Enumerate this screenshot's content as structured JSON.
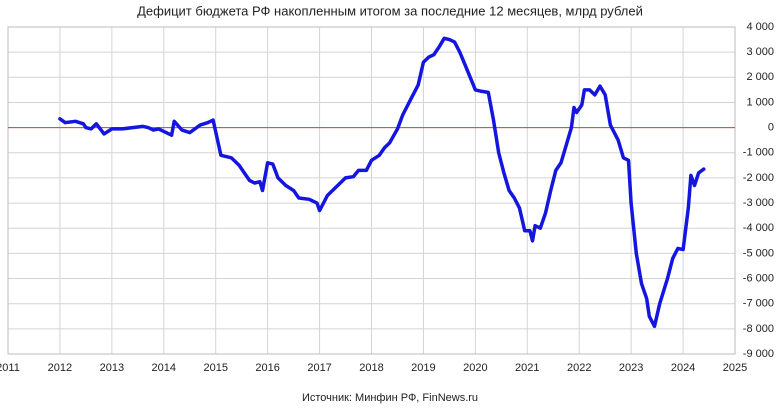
{
  "chart_data": {
    "type": "line",
    "title": "Дефицит бюджета РФ накопленным итогом за последние 12 месяцев, млрд рублей",
    "source": "Источник: Минфин РФ, FinNews.ru",
    "color": "#1515e0",
    "hline": 0,
    "hline_color": "#e03a3a",
    "grid": true,
    "xlim": [
      2011,
      2025
    ],
    "xticks": [
      2011,
      2012,
      2013,
      2014,
      2015,
      2016,
      2017,
      2018,
      2019,
      2020,
      2021,
      2022,
      2023,
      2024,
      2025
    ],
    "ylim": [
      -9000,
      4000
    ],
    "yticks": [
      {
        "value": 4000,
        "label": "4 000"
      },
      {
        "value": 3000,
        "label": "3 000"
      },
      {
        "value": 2000,
        "label": "2 000"
      },
      {
        "value": 1000,
        "label": "1 000"
      },
      0,
      {
        "value": -1000,
        "label": "-1 000"
      },
      {
        "value": -2000,
        "label": "-2 000"
      },
      {
        "value": -3000,
        "label": "-3 000"
      },
      {
        "value": -4000,
        "label": "-4 000"
      },
      {
        "value": -5000,
        "label": "-5 000"
      },
      {
        "value": -6000,
        "label": "-6 000"
      },
      {
        "value": -7000,
        "label": "-7 000"
      },
      {
        "value": -8000,
        "label": "-8 000"
      },
      {
        "value": -9000,
        "label": "-9 000"
      }
    ],
    "x": [
      2012.0,
      2012.1,
      2012.3,
      2012.45,
      2012.5,
      2012.6,
      2012.7,
      2012.85,
      2013.0,
      2013.2,
      2013.4,
      2013.6,
      2013.7,
      2013.8,
      2013.9,
      2014.0,
      2014.15,
      2014.2,
      2014.35,
      2014.5,
      2014.7,
      2014.85,
      2014.95,
      2015.1,
      2015.3,
      2015.45,
      2015.55,
      2015.65,
      2015.75,
      2015.85,
      2015.9,
      2016.0,
      2016.1,
      2016.2,
      2016.35,
      2016.5,
      2016.6,
      2016.8,
      2016.95,
      2017.0,
      2017.15,
      2017.3,
      2017.5,
      2017.65,
      2017.75,
      2017.9,
      2018.0,
      2018.15,
      2018.25,
      2018.35,
      2018.5,
      2018.6,
      2018.75,
      2018.9,
      2019.0,
      2019.1,
      2019.2,
      2019.3,
      2019.4,
      2019.5,
      2019.6,
      2019.7,
      2019.8,
      2019.9,
      2020.0,
      2020.1,
      2020.25,
      2020.35,
      2020.45,
      2020.55,
      2020.65,
      2020.75,
      2020.85,
      2020.95,
      2021.05,
      2021.1,
      2021.15,
      2021.25,
      2021.35,
      2021.45,
      2021.55,
      2021.65,
      2021.75,
      2021.85,
      2021.9,
      2021.95,
      2022.05,
      2022.1,
      2022.2,
      2022.3,
      2022.4,
      2022.5,
      2022.6,
      2022.75,
      2022.85,
      2022.95,
      2023.0,
      2023.1,
      2023.2,
      2023.3,
      2023.35,
      2023.45,
      2023.55,
      2023.7,
      2023.8,
      2023.9,
      2024.0,
      2024.1,
      2024.15,
      2024.22,
      2024.3,
      2024.4
    ],
    "values": [
      350,
      200,
      250,
      150,
      0,
      -50,
      150,
      -250,
      -50,
      -50,
      0,
      50,
      0,
      -100,
      -50,
      -150,
      -300,
      250,
      -100,
      -200,
      100,
      200,
      300,
      -1100,
      -1200,
      -1500,
      -1800,
      -2100,
      -2200,
      -2150,
      -2500,
      -1400,
      -1450,
      -2000,
      -2300,
      -2500,
      -2800,
      -2850,
      -3000,
      -3300,
      -2700,
      -2400,
      -2000,
      -1950,
      -1700,
      -1700,
      -1300,
      -1100,
      -800,
      -600,
      -50,
      500,
      1100,
      1700,
      2600,
      2800,
      2900,
      3200,
      3550,
      3500,
      3400,
      3000,
      2500,
      2000,
      1500,
      1450,
      1400,
      300,
      -1000,
      -1800,
      -2500,
      -2800,
      -3200,
      -4100,
      -4100,
      -4500,
      -3900,
      -4000,
      -3400,
      -2500,
      -1700,
      -1400,
      -700,
      0,
      800,
      600,
      900,
      1500,
      1500,
      1300,
      1650,
      1300,
      100,
      -500,
      -1200,
      -1300,
      -3000,
      -5000,
      -6200,
      -6800,
      -7500,
      -7900,
      -7000,
      -6000,
      -5200,
      -4800,
      -4850,
      -3200,
      -1900,
      -2300,
      -1800,
      -1650
    ]
  }
}
